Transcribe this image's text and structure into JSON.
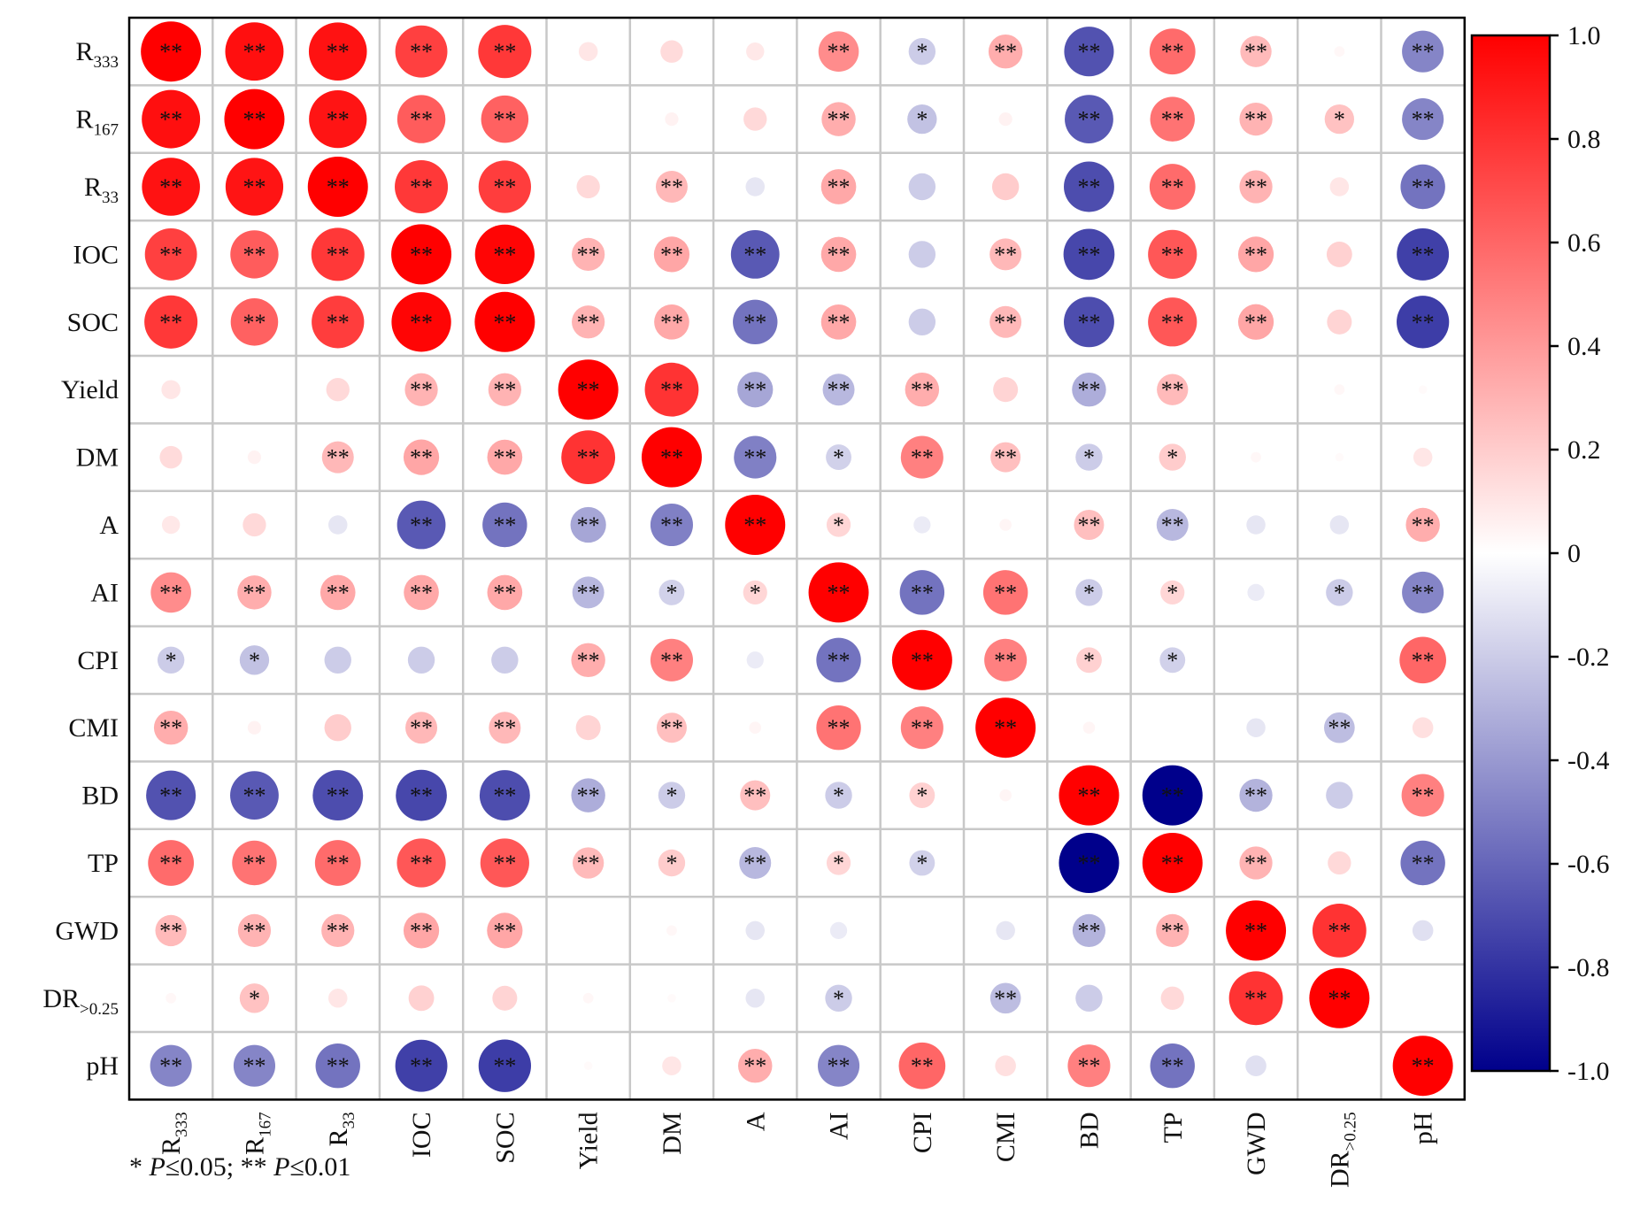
{
  "chart_data": {
    "type": "heatmap",
    "subtype": "correlation-circle-matrix",
    "variables": [
      {
        "base": "R",
        "sub": "333"
      },
      {
        "base": "R",
        "sub": "167"
      },
      {
        "base": "R",
        "sub": "33"
      },
      {
        "base": "IOC",
        "sub": ""
      },
      {
        "base": "SOC",
        "sub": ""
      },
      {
        "base": "Yield",
        "sub": ""
      },
      {
        "base": "DM",
        "sub": ""
      },
      {
        "base": "A",
        "sub": ""
      },
      {
        "base": "AI",
        "sub": ""
      },
      {
        "base": "CPI",
        "sub": ""
      },
      {
        "base": "CMI",
        "sub": ""
      },
      {
        "base": "BD",
        "sub": ""
      },
      {
        "base": "TP",
        "sub": ""
      },
      {
        "base": "GWD",
        "sub": ""
      },
      {
        "base": "DR",
        "sub": ">0.25"
      },
      {
        "base": "pH",
        "sub": ""
      }
    ],
    "matrix": [
      [
        1.0,
        0.94,
        0.93,
        0.75,
        0.78,
        0.1,
        0.14,
        0.09,
        0.45,
        -0.2,
        0.32,
        -0.68,
        0.58,
        0.27,
        0.03,
        -0.48
      ],
      [
        0.94,
        1.0,
        0.92,
        0.64,
        0.62,
        0.0,
        0.05,
        0.15,
        0.32,
        -0.24,
        0.05,
        -0.65,
        0.55,
        0.3,
        0.24,
        -0.48
      ],
      [
        0.93,
        0.92,
        1.0,
        0.78,
        0.76,
        0.15,
        0.28,
        -0.1,
        0.34,
        -0.2,
        0.2,
        -0.7,
        0.58,
        0.3,
        0.1,
        -0.55
      ],
      [
        0.75,
        0.64,
        0.78,
        1.0,
        0.98,
        0.3,
        0.35,
        -0.65,
        0.34,
        -0.2,
        0.28,
        -0.72,
        0.66,
        0.35,
        0.18,
        -0.75
      ],
      [
        0.78,
        0.62,
        0.76,
        0.98,
        1.0,
        0.3,
        0.34,
        -0.55,
        0.34,
        -0.2,
        0.28,
        -0.7,
        0.66,
        0.35,
        0.17,
        -0.76
      ],
      [
        0.1,
        0.0,
        0.15,
        0.3,
        0.3,
        1.0,
        0.8,
        -0.35,
        -0.28,
        0.32,
        0.17,
        -0.32,
        0.27,
        0.0,
        0.03,
        0.02
      ],
      [
        0.14,
        0.05,
        0.28,
        0.35,
        0.34,
        0.8,
        1.0,
        -0.5,
        -0.18,
        0.5,
        0.25,
        -0.2,
        0.2,
        0.03,
        0.02,
        0.1
      ],
      [
        0.09,
        0.15,
        -0.1,
        -0.65,
        -0.55,
        -0.35,
        -0.5,
        1.0,
        0.16,
        -0.08,
        0.04,
        0.25,
        -0.28,
        -0.1,
        -0.1,
        0.32
      ],
      [
        0.45,
        0.32,
        0.34,
        0.34,
        0.34,
        -0.28,
        -0.18,
        0.16,
        1.0,
        -0.55,
        0.55,
        -0.2,
        0.16,
        -0.08,
        -0.2,
        -0.48
      ],
      [
        -0.2,
        -0.24,
        -0.2,
        -0.2,
        -0.2,
        0.32,
        0.5,
        -0.08,
        -0.55,
        1.0,
        0.5,
        0.18,
        -0.18,
        0.0,
        0.0,
        0.6
      ],
      [
        0.32,
        0.05,
        0.2,
        0.28,
        0.28,
        0.17,
        0.25,
        0.04,
        0.55,
        0.5,
        1.0,
        0.04,
        0.0,
        -0.1,
        -0.26,
        0.12
      ],
      [
        -0.68,
        -0.65,
        -0.7,
        -0.72,
        -0.7,
        -0.32,
        -0.2,
        0.25,
        -0.2,
        0.18,
        0.04,
        1.0,
        -1.0,
        -0.3,
        -0.2,
        0.5
      ],
      [
        0.58,
        0.55,
        0.58,
        0.66,
        0.66,
        0.27,
        0.2,
        -0.28,
        0.16,
        -0.18,
        0.0,
        -1.0,
        1.0,
        0.3,
        0.15,
        -0.55
      ],
      [
        0.27,
        0.3,
        0.3,
        0.35,
        0.35,
        0.0,
        0.03,
        -0.1,
        -0.08,
        0.0,
        -0.1,
        -0.3,
        0.3,
        1.0,
        0.8,
        -0.12
      ],
      [
        0.03,
        0.24,
        0.1,
        0.18,
        0.17,
        0.03,
        0.02,
        -0.1,
        -0.2,
        0.0,
        -0.26,
        -0.2,
        0.15,
        0.8,
        1.0,
        0.0
      ],
      [
        -0.48,
        -0.48,
        -0.55,
        -0.75,
        -0.76,
        0.02,
        0.1,
        0.32,
        -0.48,
        0.6,
        0.12,
        0.5,
        -0.55,
        -0.12,
        0.0,
        1.0
      ]
    ],
    "significance": [
      [
        "**",
        "**",
        "**",
        "**",
        "**",
        "",
        "",
        "",
        "**",
        "*",
        "**",
        "**",
        "**",
        "**",
        "",
        "**"
      ],
      [
        "**",
        "**",
        "**",
        "**",
        "**",
        "",
        "",
        "",
        "**",
        "*",
        "",
        "**",
        "**",
        "**",
        "*",
        "**"
      ],
      [
        "**",
        "**",
        "**",
        "**",
        "**",
        "",
        "**",
        "",
        "**",
        "",
        "",
        "**",
        "**",
        "**",
        "",
        "**"
      ],
      [
        "**",
        "**",
        "**",
        "**",
        "**",
        "**",
        "**",
        "**",
        "**",
        "",
        "**",
        "**",
        "**",
        "**",
        "",
        "**"
      ],
      [
        "**",
        "**",
        "**",
        "**",
        "**",
        "**",
        "**",
        "**",
        "**",
        "",
        "**",
        "**",
        "**",
        "**",
        "",
        "**"
      ],
      [
        "",
        "",
        "",
        "**",
        "**",
        "**",
        "**",
        "**",
        "**",
        "**",
        "",
        "**",
        "**",
        "",
        "",
        ""
      ],
      [
        "",
        "",
        "**",
        "**",
        "**",
        "**",
        "**",
        "**",
        "*",
        "**",
        "**",
        "*",
        "*",
        "",
        "",
        ""
      ],
      [
        "",
        "",
        "",
        "**",
        "**",
        "**",
        "**",
        "**",
        "*",
        "",
        "",
        "**",
        "**",
        "",
        "",
        "**"
      ],
      [
        "**",
        "**",
        "**",
        "**",
        "**",
        "**",
        "*",
        "*",
        "**",
        "**",
        "**",
        "*",
        "*",
        "",
        "*",
        "**"
      ],
      [
        "*",
        "*",
        "",
        "",
        "",
        "**",
        "**",
        "",
        "**",
        "**",
        "**",
        "*",
        "*",
        "",
        "",
        "**"
      ],
      [
        "**",
        "",
        "",
        "**",
        "**",
        "",
        "**",
        "",
        "**",
        "**",
        "**",
        "",
        "",
        "",
        "**",
        ""
      ],
      [
        "**",
        "**",
        "**",
        "**",
        "**",
        "**",
        "*",
        "**",
        "*",
        "*",
        "",
        "**",
        "**",
        "**",
        "",
        "**"
      ],
      [
        "**",
        "**",
        "**",
        "**",
        "**",
        "**",
        "*",
        "**",
        "*",
        "*",
        "",
        "**",
        "**",
        "**",
        "",
        "**"
      ],
      [
        "**",
        "**",
        "**",
        "**",
        "**",
        "",
        "",
        "",
        "",
        "",
        "",
        "**",
        "**",
        "**",
        "**",
        ""
      ],
      [
        "",
        "*",
        "",
        "",
        "",
        "",
        "",
        "",
        "*",
        "",
        "**",
        "",
        "",
        "**",
        "**",
        ""
      ],
      [
        "**",
        "**",
        "**",
        "**",
        "**",
        "",
        "",
        "**",
        "**",
        "**",
        "",
        "**",
        "**",
        "",
        "",
        "**"
      ]
    ],
    "colorbar": {
      "min": -1.0,
      "max": 1.0,
      "ticks": [
        "1.0",
        "0.8",
        "0.6",
        "0.4",
        "0.2",
        "0",
        "-0.2",
        "-0.4",
        "-0.6",
        "-0.8",
        "-1.0"
      ],
      "colors": {
        "negative": "#00008B",
        "zero": "#ffffff",
        "positive": "#ff0000"
      }
    },
    "footnote": {
      "part1": "* ",
      "p1": "P",
      "part2": "≤0.05; ** ",
      "p2": "P",
      "part3": "≤0.01"
    },
    "grid": true,
    "legend_position": "right"
  }
}
